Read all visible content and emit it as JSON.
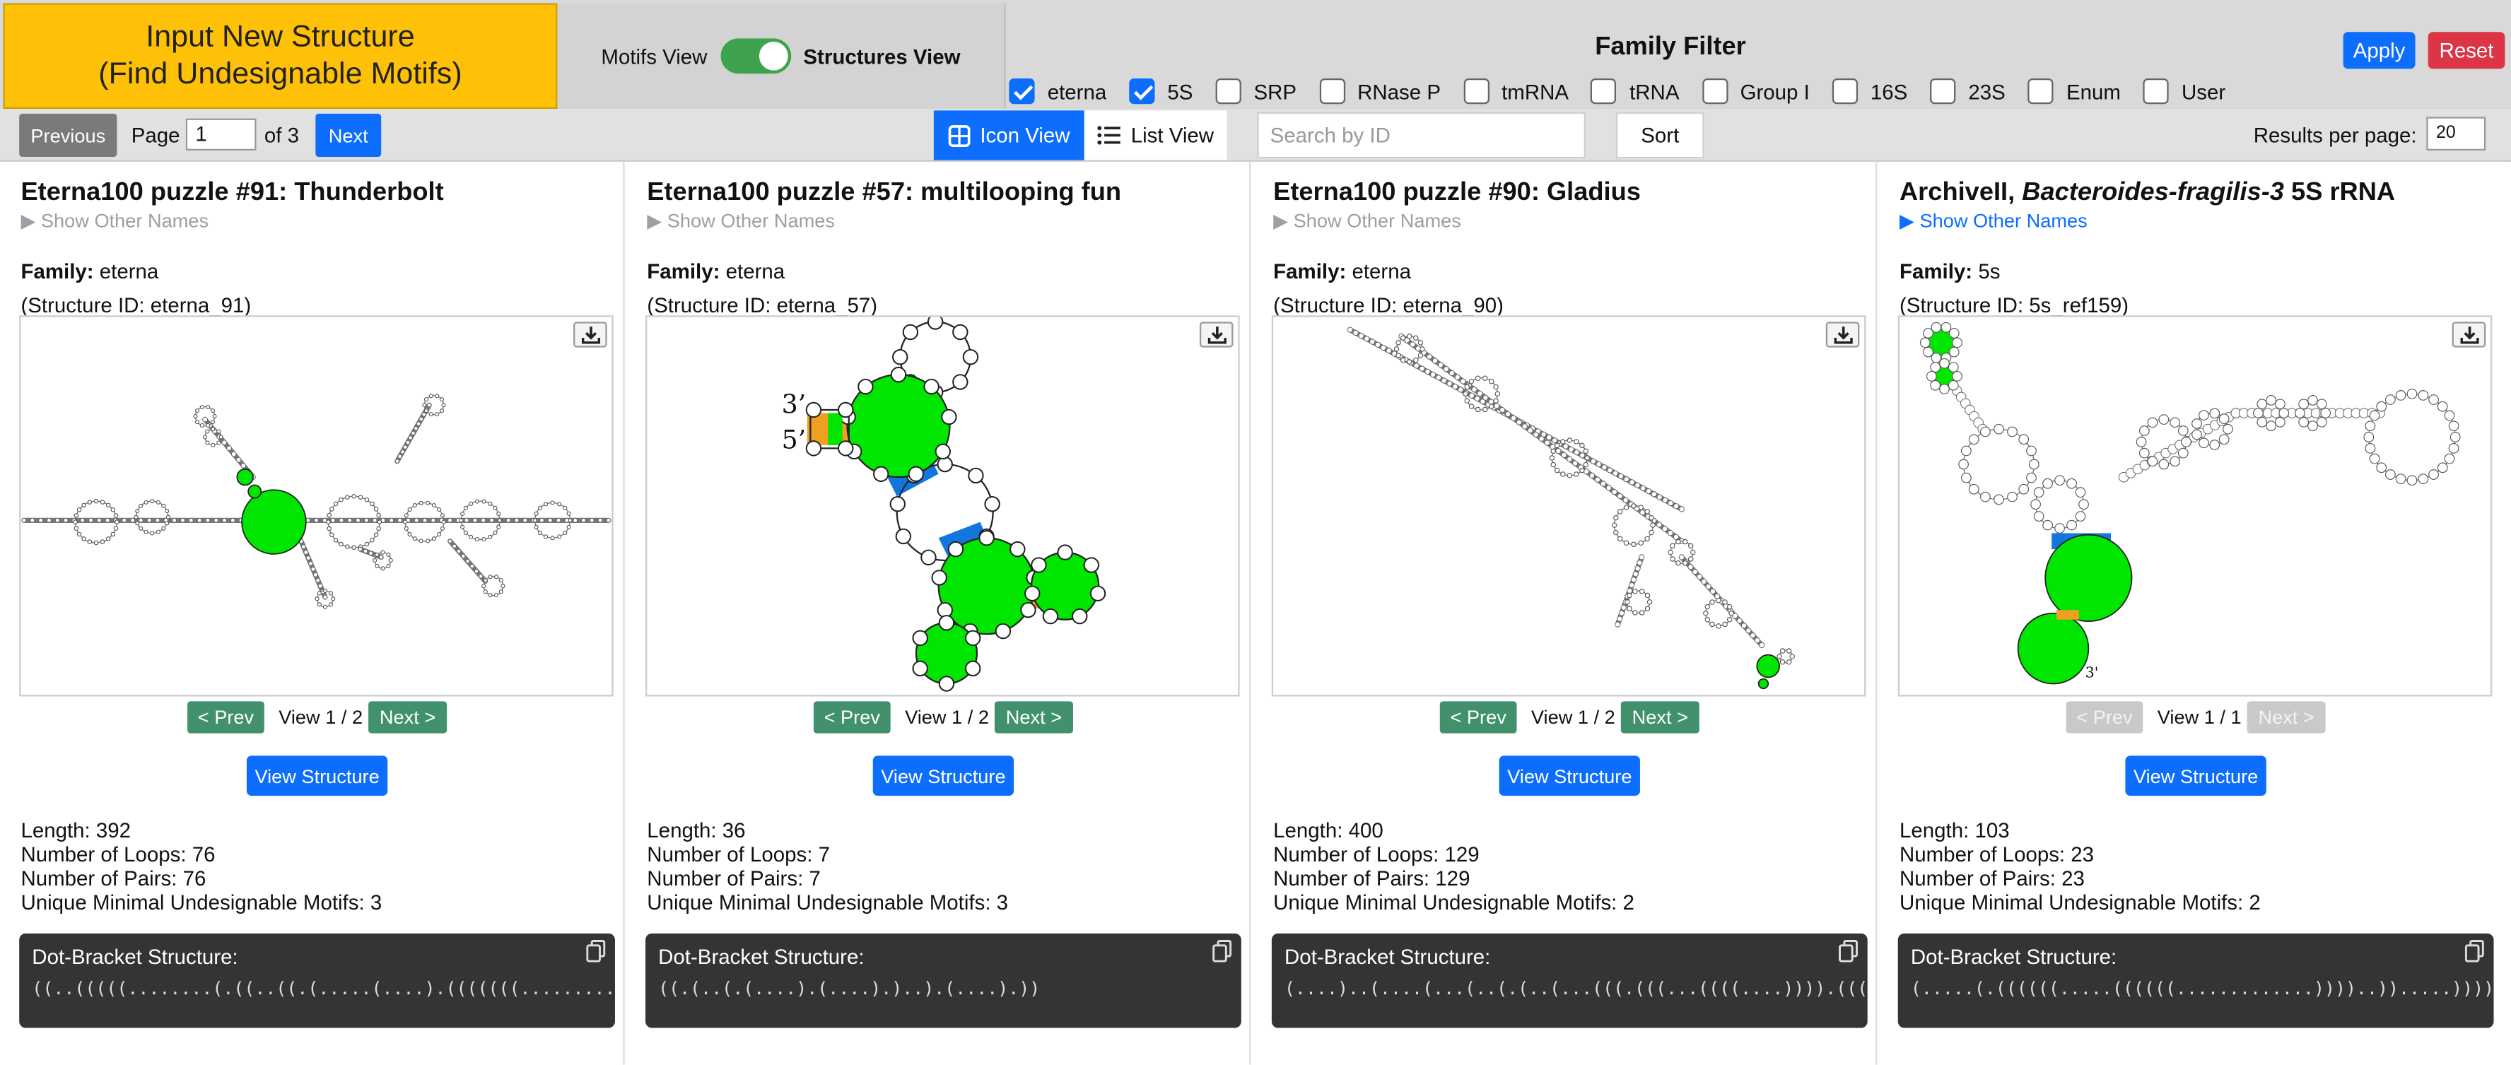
{
  "header": {
    "input_btn_line1": "Input New Structure",
    "input_btn_line2": "(Find Undesignable Motifs)",
    "motifs_view": "Motifs View",
    "structures_view": "Structures View",
    "family_filter_title": "Family Filter",
    "apply": "Apply",
    "reset": "Reset",
    "filters": [
      {
        "label": "eterna",
        "checked": true
      },
      {
        "label": "5S",
        "checked": true
      },
      {
        "label": "SRP",
        "checked": false
      },
      {
        "label": "RNase P",
        "checked": false
      },
      {
        "label": "tmRNA",
        "checked": false
      },
      {
        "label": "tRNA",
        "checked": false
      },
      {
        "label": "Group I",
        "checked": false
      },
      {
        "label": "16S",
        "checked": false
      },
      {
        "label": "23S",
        "checked": false
      },
      {
        "label": "Enum",
        "checked": false
      },
      {
        "label": "User",
        "checked": false
      }
    ]
  },
  "toolbar": {
    "previous": "Previous",
    "page_label": "Page",
    "page_value": "1",
    "of_label": "of 3",
    "next": "Next",
    "icon_view": "Icon View",
    "list_view": "List View",
    "search_placeholder": "Search by ID",
    "sort": "Sort",
    "results_label": "Results per page:",
    "results_value": "20"
  },
  "labels": {
    "family": "Family:",
    "prev": "< Prev",
    "next": "Next >",
    "view_structure": "View Structure",
    "dot_bracket": "Dot-Bracket Structure:"
  },
  "cards": [
    {
      "title": "Eterna100 puzzle #91: Thunderbolt",
      "other_names": "▶ Show Other Names",
      "family": "eterna",
      "structure_id": "(Structure ID: eterna_91)",
      "view": "View 1 / 2",
      "length": "Length: 392",
      "loops": "Number of Loops: 76",
      "pairs": "Number of Pairs: 76",
      "motifs": "Unique Minimal Undesignable Motifs: 3",
      "dot_bracket": "((..(((((........(.((..((.(.....(....).(((((((.........((("
    },
    {
      "title": "Eterna100 puzzle #57: multilooping fun",
      "other_names": "▶ Show Other Names",
      "family": "eterna",
      "structure_id": "(Structure ID: eterna_57)",
      "view": "View 1 / 2",
      "length": "Length: 36",
      "loops": "Number of Loops: 7",
      "pairs": "Number of Pairs: 7",
      "motifs": "Unique Minimal Undesignable Motifs: 3",
      "dot_bracket": "((.(..(.(....).(....).)..).(....).))",
      "label_3p": "3’",
      "label_5p": "5’"
    },
    {
      "title": "Eterna100 puzzle #90: Gladius",
      "other_names": "▶ Show Other Names",
      "family": "eterna",
      "structure_id": "(Structure ID: eterna_90)",
      "view": "View 1 / 2",
      "length": "Length: 400",
      "loops": "Number of Loops: 129",
      "pairs": "Number of Pairs: 129",
      "motifs": "Unique Minimal Undesignable Motifs: 2",
      "dot_bracket": "(....)..(....(...(..(.(..(...(((.(((...((((....)))).((((."
    },
    {
      "title_plain": "ArchiveII, ",
      "title_italic": "Bacteroides-fragilis-3",
      "title_rest": " 5S rRNA",
      "other_names": "▶ Show Other Names",
      "family": "5s",
      "structure_id": "(Structure ID: 5s_ref159)",
      "view": "View 1 / 1",
      "length": "Length: 103",
      "loops": "Number of Loops: 23",
      "pairs": "Number of Pairs: 23",
      "motifs": "Unique Minimal Undesignable Motifs: 2",
      "dot_bracket": "(.....(.((((((.....((((((.............))))..)).....))))))..",
      "label_3p": "3'"
    }
  ],
  "colors": {
    "motif_green": "#00e600",
    "pair_blue": "#1177dd",
    "pair_orange": "#f0a020",
    "accent_blue": "#0d6efd",
    "nav_green": "#40916c"
  }
}
